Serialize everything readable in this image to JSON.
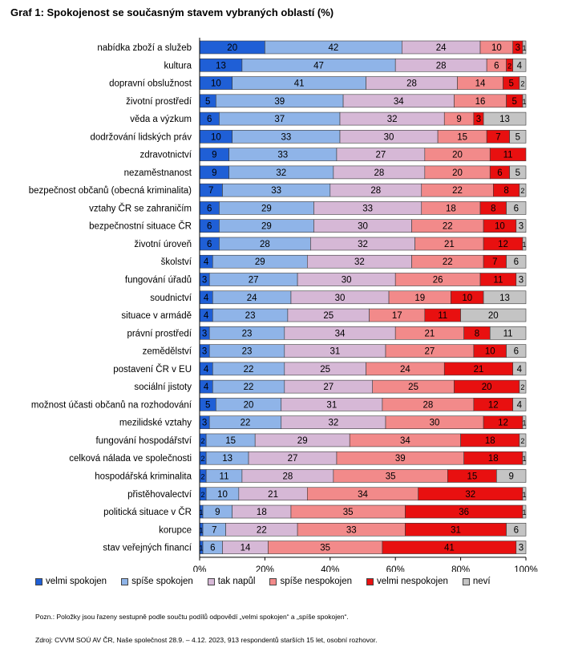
{
  "title": "Graf 1: Spokojenost se současným stavem vybraných oblastí (%)",
  "note": "Pozn.: Položky jsou řazeny sestupně podle součtu podílů odpovědí „velmi spokojen“ a „spíše spokojen“.",
  "source": "Zdroj: CVVM SOÚ AV ČR, Naše společnost 28.9. – 4.12. 2023, 913 respondentů starších 15 let, osobní rozhovor.",
  "chart_data": {
    "type": "bar",
    "orientation": "horizontal",
    "stacked": true,
    "xlim": [
      0,
      100
    ],
    "x_ticks": [
      "0%",
      "20%",
      "40%",
      "60%",
      "80%",
      "100%"
    ],
    "legend_position": "bottom",
    "grid": false,
    "categories": [
      "nabídka zboží a služeb",
      "kultura",
      "dopravní obslužnost",
      "životní prostředí",
      "věda a výzkum",
      "dodržování lidských práv",
      "zdravotnictví",
      "nezaměstnanost",
      "bezpečnost občanů (obecná kriminalita)",
      "vztahy ČR se zahraničím",
      "bezpečnostní situace ČR",
      "životní úroveň",
      "školství",
      "fungování úřadů",
      "soudnictví",
      "situace v armádě",
      "právní prostředí",
      "zemědělství",
      "postavení ČR v EU",
      "sociální jistoty",
      "možnost účasti občanů na rozhodování",
      "mezilidské vztahy",
      "fungování hospodářství",
      "celková nálada ve společnosti",
      "hospodářská kriminalita",
      "přistěhovalectví",
      "politická situace v ČR",
      "korupce",
      "stav veřejných financí"
    ],
    "series": [
      {
        "name": "velmi spokojen",
        "color": "#1f5fd6",
        "values": [
          20,
          13,
          10,
          5,
          6,
          10,
          9,
          9,
          7,
          6,
          6,
          6,
          4,
          3,
          4,
          4,
          3,
          3,
          4,
          4,
          5,
          3,
          2,
          2,
          2,
          2,
          1,
          1,
          1
        ]
      },
      {
        "name": "spíše spokojen",
        "color": "#8fb4e8",
        "values": [
          42,
          47,
          41,
          39,
          37,
          33,
          33,
          32,
          33,
          29,
          29,
          28,
          29,
          27,
          24,
          23,
          23,
          23,
          22,
          22,
          20,
          22,
          15,
          13,
          11,
          10,
          9,
          7,
          6
        ]
      },
      {
        "name": "tak napůl",
        "color": "#d6b8d6",
        "values": [
          24,
          28,
          28,
          34,
          32,
          30,
          27,
          28,
          28,
          33,
          30,
          32,
          32,
          30,
          30,
          25,
          34,
          31,
          25,
          27,
          31,
          32,
          29,
          27,
          28,
          21,
          18,
          22,
          14
        ]
      },
      {
        "name": "spíše nespokojen",
        "color": "#f28a8a",
        "values": [
          10,
          6,
          14,
          16,
          9,
          15,
          20,
          20,
          22,
          18,
          22,
          21,
          22,
          26,
          19,
          17,
          21,
          27,
          24,
          25,
          28,
          30,
          34,
          39,
          35,
          34,
          35,
          33,
          35
        ]
      },
      {
        "name": "velmi nespokojen",
        "color": "#e81010",
        "values": [
          3,
          2,
          5,
          5,
          3,
          7,
          11,
          6,
          8,
          8,
          10,
          12,
          7,
          11,
          10,
          11,
          8,
          10,
          21,
          20,
          12,
          12,
          18,
          18,
          15,
          32,
          36,
          31,
          41
        ]
      },
      {
        "name": "neví",
        "color": "#c4c4c4",
        "values": [
          1,
          4,
          2,
          1,
          13,
          5,
          0,
          5,
          2,
          6,
          3,
          1,
          6,
          3,
          13,
          20,
          11,
          6,
          4,
          2,
          4,
          1,
          2,
          1,
          9,
          1,
          1,
          6,
          3
        ]
      }
    ]
  }
}
